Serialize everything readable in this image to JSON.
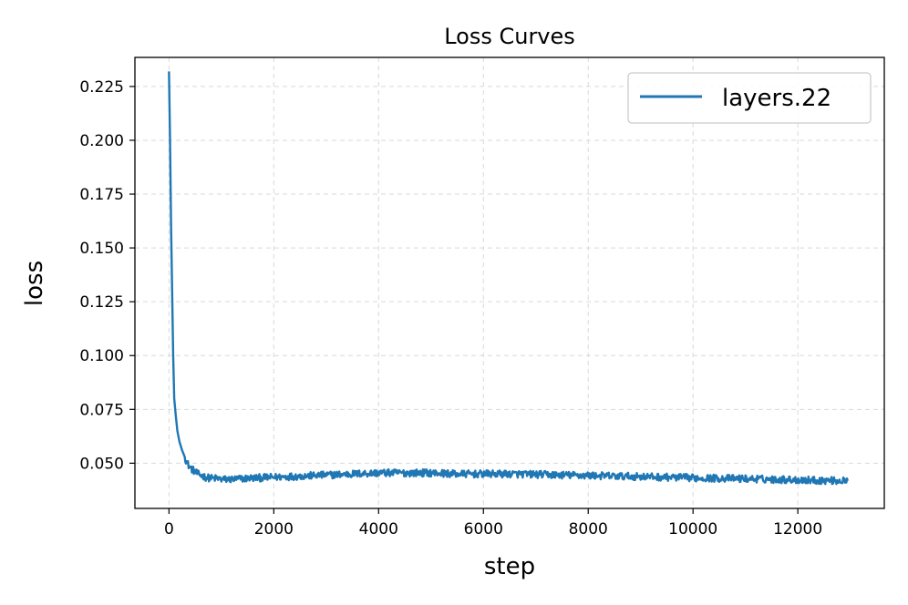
{
  "chart_data": {
    "type": "line",
    "title": "Loss Curves",
    "xlabel": "step",
    "ylabel": "loss",
    "xlim": [
      -650,
      13650
    ],
    "ylim": [
      0.029,
      0.2385
    ],
    "xticks": [
      0,
      2000,
      4000,
      6000,
      8000,
      10000,
      12000
    ],
    "xtick_labels": [
      "0",
      "2000",
      "4000",
      "6000",
      "8000",
      "10000",
      "12000"
    ],
    "yticks": [
      0.05,
      0.075,
      0.1,
      0.125,
      0.15,
      0.175,
      0.2,
      0.225
    ],
    "ytick_labels": [
      "0.050",
      "0.075",
      "0.100",
      "0.125",
      "0.150",
      "0.175",
      "0.200",
      "0.225"
    ],
    "grid": true,
    "legend_position": "top-right",
    "color": "#1f77b4",
    "series": [
      {
        "name": "layers.22",
        "x": [
          0,
          20,
          40,
          60,
          80,
          100,
          130,
          160,
          200,
          250,
          300,
          350,
          400,
          450,
          500,
          550,
          600,
          650,
          700,
          800,
          900,
          1000,
          1200,
          1500,
          2000,
          2500,
          3000,
          3500,
          4000,
          4500,
          5000,
          5500,
          6000,
          6500,
          7000,
          7500,
          8000,
          8500,
          9000,
          9500,
          10000,
          10500,
          11000,
          11500,
          12000,
          12500,
          12950
        ],
        "y": [
          0.232,
          0.2,
          0.16,
          0.13,
          0.1,
          0.08,
          0.072,
          0.065,
          0.06,
          0.056,
          0.053,
          0.05,
          0.048,
          0.047,
          0.046,
          0.045,
          0.0445,
          0.044,
          0.0435,
          0.043,
          0.043,
          0.0425,
          0.0425,
          0.043,
          0.0435,
          0.044,
          0.0445,
          0.045,
          0.0455,
          0.0455,
          0.0455,
          0.045,
          0.045,
          0.045,
          0.0448,
          0.0445,
          0.0443,
          0.044,
          0.0438,
          0.0435,
          0.0432,
          0.043,
          0.0428,
          0.0425,
          0.0423,
          0.042,
          0.0418
        ]
      }
    ]
  }
}
